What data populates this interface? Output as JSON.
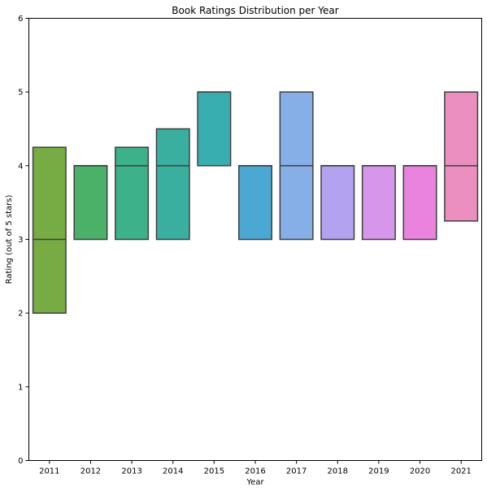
{
  "chart_data": {
    "type": "box",
    "title": "Book Ratings Distribution per Year",
    "xlabel": "Year",
    "ylabel": "Rating (out of 5 stars)",
    "ylim": [
      0,
      6
    ],
    "yticks": [
      0,
      1,
      2,
      3,
      4,
      5,
      6
    ],
    "grid": false,
    "categories": [
      "2011",
      "2012",
      "2013",
      "2014",
      "2015",
      "2016",
      "2017",
      "2018",
      "2019",
      "2020",
      "2021"
    ],
    "boxes": [
      {
        "q1": 2.0,
        "median": 3.0,
        "q3": 4.25,
        "color": "#77ab43"
      },
      {
        "q1": 3.0,
        "median": 4.0,
        "q3": 4.0,
        "color": "#4cb168"
      },
      {
        "q1": 3.0,
        "median": 4.0,
        "q3": 4.25,
        "color": "#3db189"
      },
      {
        "q1": 3.0,
        "median": 4.0,
        "q3": 4.5,
        "color": "#3aaf9f"
      },
      {
        "q1": 4.0,
        "median": 5.0,
        "q3": 5.0,
        "color": "#39aeb1"
      },
      {
        "q1": 3.0,
        "median": 4.0,
        "q3": 4.0,
        "color": "#4aa8d3"
      },
      {
        "q1": 3.0,
        "median": 4.0,
        "q3": 5.0,
        "color": "#86afe8"
      },
      {
        "q1": 3.0,
        "median": 4.0,
        "q3": 4.0,
        "color": "#b3a2ef"
      },
      {
        "q1": 3.0,
        "median": 4.0,
        "q3": 4.0,
        "color": "#d696ea"
      },
      {
        "q1": 3.0,
        "median": 4.0,
        "q3": 4.0,
        "color": "#e983de"
      },
      {
        "q1": 3.25,
        "median": 4.0,
        "q3": 5.0,
        "color": "#ea8fc0"
      }
    ],
    "line_color": "#3f3f3f"
  }
}
